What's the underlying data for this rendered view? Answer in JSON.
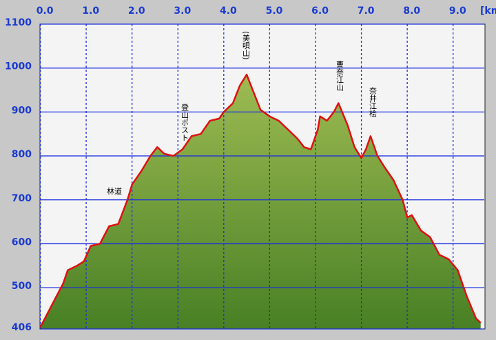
{
  "chart_data": {
    "type": "area",
    "x": [
      0,
      0.1,
      0.3,
      0.5,
      0.6,
      0.8,
      0.95,
      1.1,
      1.3,
      1.5,
      1.7,
      1.9,
      2.0,
      2.2,
      2.4,
      2.55,
      2.7,
      2.9,
      3.1,
      3.3,
      3.5,
      3.7,
      3.9,
      4.0,
      4.2,
      4.35,
      4.5,
      4.65,
      4.8,
      5.0,
      5.2,
      5.4,
      5.6,
      5.75,
      5.9,
      6.05,
      6.1,
      6.25,
      6.4,
      6.5,
      6.7,
      6.85,
      7.0,
      7.1,
      7.2,
      7.35,
      7.5,
      7.7,
      7.9,
      8.0,
      8.1,
      8.3,
      8.5,
      8.7,
      8.9,
      9.1,
      9.3,
      9.5,
      9.6
    ],
    "values": [
      410,
      430,
      470,
      510,
      540,
      550,
      560,
      595,
      600,
      640,
      645,
      700,
      735,
      765,
      800,
      820,
      805,
      800,
      815,
      845,
      850,
      880,
      885,
      900,
      920,
      960,
      985,
      945,
      905,
      890,
      880,
      860,
      840,
      820,
      815,
      860,
      890,
      880,
      900,
      920,
      870,
      820,
      795,
      815,
      845,
      800,
      775,
      745,
      700,
      660,
      665,
      630,
      615,
      575,
      565,
      540,
      480,
      430,
      420
    ],
    "line_color": "#e01010",
    "fill_color": "#6a9a2a",
    "xlim": [
      0,
      9.68
    ],
    "xticks": [
      {
        "value": 0,
        "label": "0.0"
      },
      {
        "value": 1,
        "label": "1.0"
      },
      {
        "value": 2,
        "label": "2.0"
      },
      {
        "value": 3,
        "label": "3.0"
      },
      {
        "value": 4,
        "label": "4.0"
      },
      {
        "value": 5,
        "label": "5.0"
      },
      {
        "value": 6,
        "label": "6.0"
      },
      {
        "value": 7,
        "label": "7.0"
      },
      {
        "value": 8,
        "label": "8.0"
      },
      {
        "value": 9,
        "label": "9.0"
      }
    ],
    "x_label": "[km",
    "ylim": [
      406,
      1100
    ],
    "yticks": [
      406,
      500,
      600,
      700,
      800,
      900,
      1000,
      1100
    ],
    "grid": true,
    "annotations": [
      "林道",
      "登山ポスト",
      "(美唄山)",
      "曹奈江山",
      "奈井江桧"
    ]
  }
}
